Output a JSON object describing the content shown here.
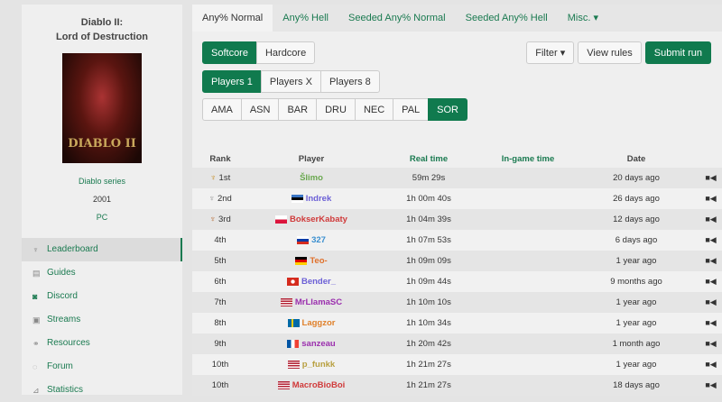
{
  "game": {
    "title_line1": "Diablo II:",
    "title_line2": "Lord of Destruction",
    "cover_text": "DIABLO II",
    "series": "Diablo series",
    "year": "2001",
    "platform": "PC"
  },
  "nav": [
    {
      "label": "Leaderboard",
      "icon": "trophy-icon"
    },
    {
      "label": "Guides",
      "icon": "book-icon"
    },
    {
      "label": "Discord",
      "icon": "discord-icon"
    },
    {
      "label": "Streams",
      "icon": "twitch-icon"
    },
    {
      "label": "Resources",
      "icon": "link-icon"
    },
    {
      "label": "Forum",
      "icon": "chat-icon"
    },
    {
      "label": "Statistics",
      "icon": "chart-icon"
    }
  ],
  "tabs": [
    "Any% Normal",
    "Any% Hell",
    "Seeded Any% Normal",
    "Seeded Any% Hell",
    "Misc. ▾"
  ],
  "modes": [
    "Softcore",
    "Hardcore"
  ],
  "players": [
    "Players 1",
    "Players X",
    "Players 8"
  ],
  "classes": [
    "AMA",
    "ASN",
    "BAR",
    "DRU",
    "NEC",
    "PAL",
    "SOR"
  ],
  "actions": {
    "filter": "Filter ▾",
    "rules": "View rules",
    "submit": "Submit run"
  },
  "accent": "#107a4e",
  "headers": {
    "rank": "Rank",
    "player": "Player",
    "real": "Real time",
    "igt": "In-game time",
    "date": "Date"
  },
  "rows": [
    {
      "rank": "1st",
      "trophy": "#c8902a",
      "player": "Šlimo",
      "color": "#6aa84f",
      "flag": "",
      "time": "59m 29s",
      "date": "20 days ago"
    },
    {
      "rank": "2nd",
      "trophy": "#999",
      "player": "Indrek",
      "color": "#6b5fd6",
      "flag": "ee",
      "time": "1h 00m 40s",
      "date": "26 days ago"
    },
    {
      "rank": "3rd",
      "trophy": "#b8703a",
      "player": "BokserKabaty",
      "color": "#d03a3a",
      "flag": "pl",
      "time": "1h 04m 39s",
      "date": "12 days ago"
    },
    {
      "rank": "4th",
      "player": "327",
      "color": "#3a8fd0",
      "flag": "ru",
      "time": "1h 07m 53s",
      "date": "6 days ago"
    },
    {
      "rank": "5th",
      "player": "Teo-",
      "color": "#e0702a",
      "flag": "de",
      "time": "1h 09m 09s",
      "date": "1 year ago"
    },
    {
      "rank": "6th",
      "player": "Bender_",
      "color": "#6b5fd6",
      "flag": "ch",
      "time": "1h 09m 44s",
      "date": "9 months ago"
    },
    {
      "rank": "7th",
      "player": "MrLlamaSC",
      "color": "#9b2fae",
      "flag": "us",
      "time": "1h 10m 10s",
      "date": "1 year ago"
    },
    {
      "rank": "8th",
      "player": "Laggzor",
      "color": "#e0802a",
      "flag": "se",
      "time": "1h 10m 34s",
      "date": "1 year ago"
    },
    {
      "rank": "9th",
      "player": "sanzeau",
      "color": "#9b2fae",
      "flag": "fr",
      "time": "1h 20m 42s",
      "date": "1 month ago"
    },
    {
      "rank": "10th",
      "player": "p_funkk",
      "color": "#b8a040",
      "flag": "us",
      "time": "1h 21m 27s",
      "date": "1 year ago"
    },
    {
      "rank": "10th",
      "player": "MacroBioBoi",
      "color": "#d03a3a",
      "flag": "us",
      "time": "1h 21m 27s",
      "date": "18 days ago"
    }
  ]
}
